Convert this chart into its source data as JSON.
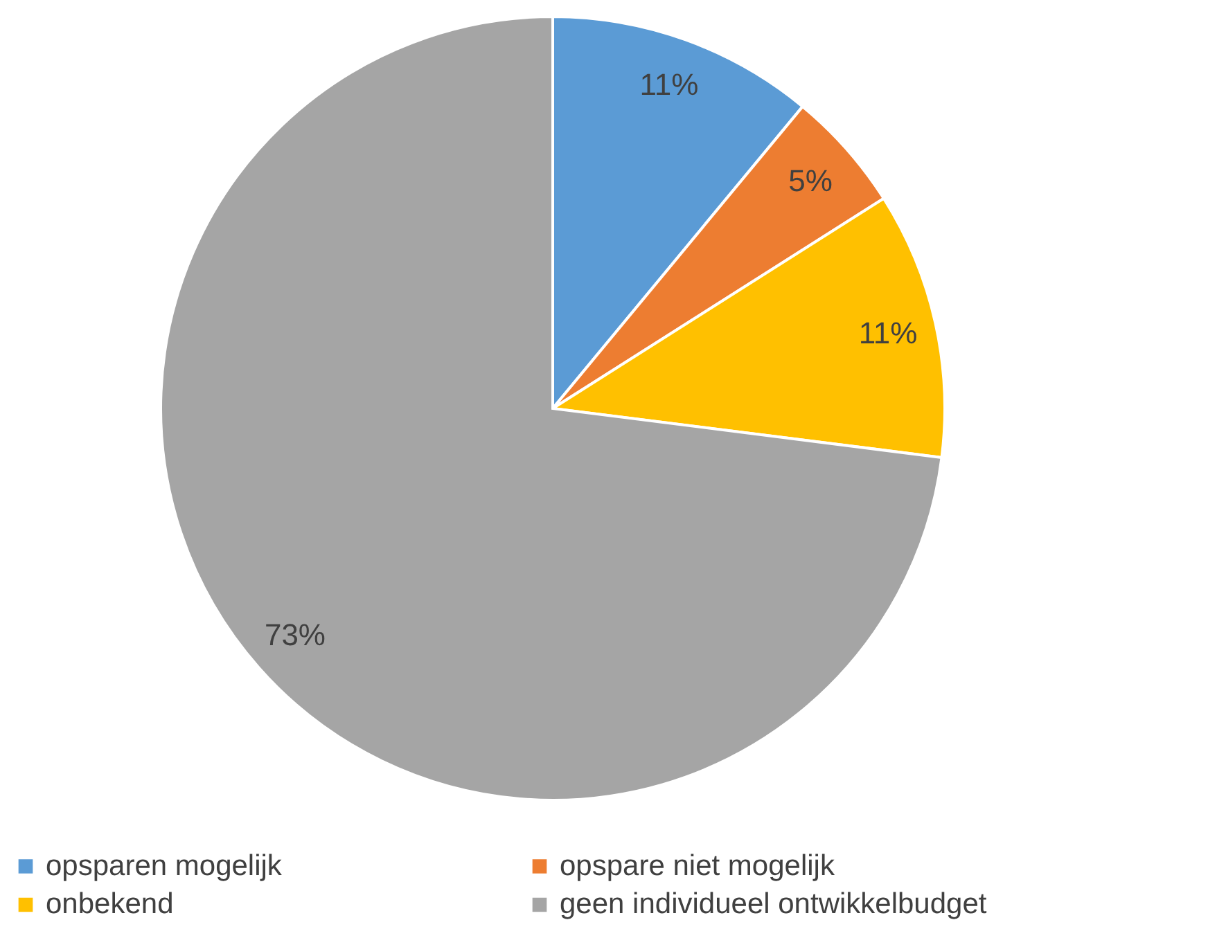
{
  "chart_data": {
    "type": "pie",
    "categories": [
      "opsparen mogelijk",
      "opspare niet mogelijk",
      "onbekend",
      "geen individueel ontwikkelbudget"
    ],
    "values": [
      11,
      5,
      11,
      73
    ],
    "colors": [
      "#5b9bd5",
      "#ed7d31",
      "#ffc000",
      "#a5a5a5"
    ],
    "value_labels": [
      "11%",
      "5%",
      "11%",
      "73%"
    ],
    "legend": "bottom"
  }
}
